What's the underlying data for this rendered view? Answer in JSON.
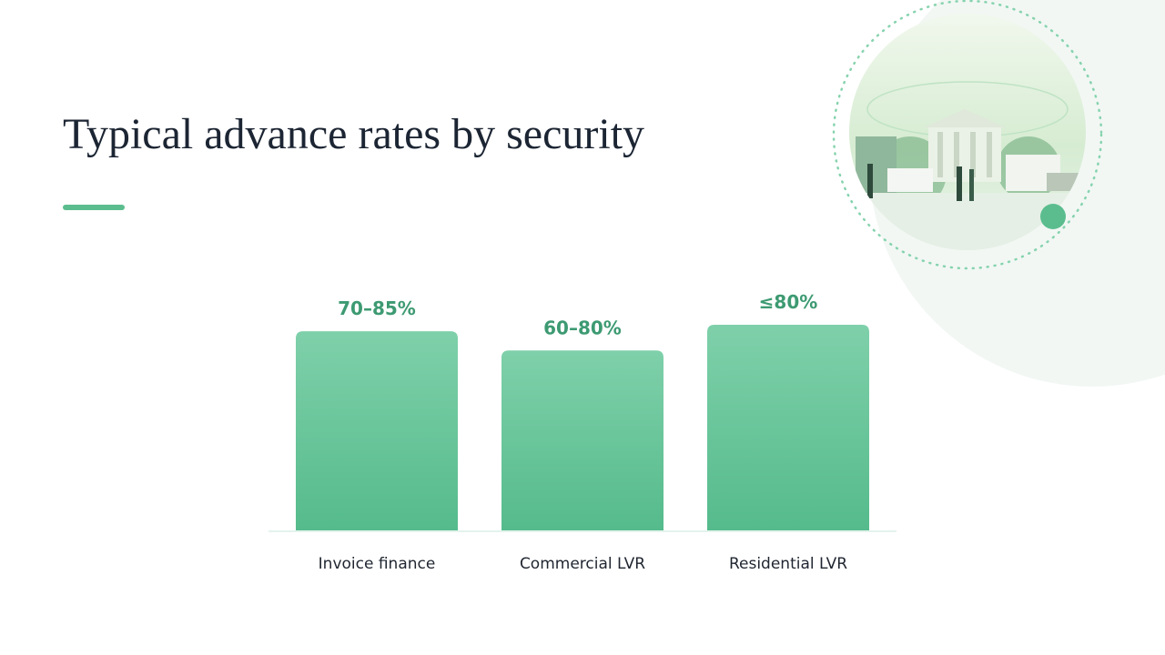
{
  "chart_data": {
    "type": "bar",
    "title": "Typical advance rates by security",
    "categories": [
      "Invoice finance",
      "Commercial LVR",
      "Residential LVR"
    ],
    "values": [
      77.5,
      70,
      80
    ],
    "value_labels": [
      "70–85%",
      "60–80%",
      "≤80%"
    ],
    "color": "#5bbd8e"
  }
}
